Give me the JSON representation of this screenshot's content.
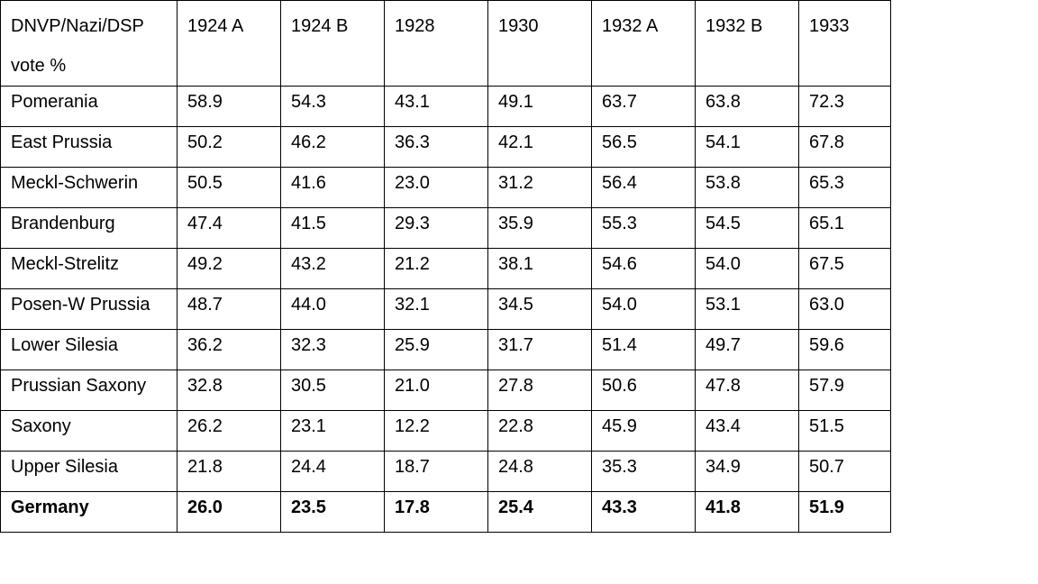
{
  "table": {
    "corner_line1": "DNVP/Nazi/DSP",
    "corner_line2": "vote %",
    "columns": [
      "1924 A",
      "1924 B",
      "1928",
      "1930",
      "1932 A",
      "1932 B",
      "1933"
    ],
    "rows": [
      {
        "region": "Pomerania",
        "values": [
          "58.9",
          "54.3",
          "43.1",
          "49.1",
          "63.7",
          "63.8",
          "72.3"
        ]
      },
      {
        "region": "East Prussia",
        "values": [
          "50.2",
          "46.2",
          "36.3",
          "42.1",
          "56.5",
          "54.1",
          "67.8"
        ]
      },
      {
        "region": "Meckl-Schwerin",
        "values": [
          "50.5",
          "41.6",
          "23.0",
          "31.2",
          "56.4",
          "53.8",
          "65.3"
        ]
      },
      {
        "region": "Brandenburg",
        "values": [
          "47.4",
          "41.5",
          "29.3",
          "35.9",
          "55.3",
          "54.5",
          "65.1"
        ]
      },
      {
        "region": "Meckl-Strelitz",
        "values": [
          "49.2",
          "43.2",
          "21.2",
          "38.1",
          "54.6",
          "54.0",
          "67.5"
        ]
      },
      {
        "region": "Posen-W Prussia",
        "values": [
          "48.7",
          "44.0",
          "32.1",
          "34.5",
          "54.0",
          "53.1",
          "63.0"
        ]
      },
      {
        "region": "Lower Silesia",
        "values": [
          "36.2",
          "32.3",
          "25.9",
          "31.7",
          "51.4",
          "49.7",
          "59.6"
        ]
      },
      {
        "region": "Prussian Saxony",
        "values": [
          "32.8",
          "30.5",
          "21.0",
          "27.8",
          "50.6",
          "47.8",
          "57.9"
        ]
      },
      {
        "region": "Saxony",
        "values": [
          "26.2",
          "23.1",
          "12.2",
          "22.8",
          "45.9",
          "43.4",
          "51.5"
        ]
      },
      {
        "region": "Upper Silesia",
        "values": [
          "21.8",
          "24.4",
          "18.7",
          "24.8",
          "35.3",
          "34.9",
          "50.7"
        ]
      }
    ],
    "total": {
      "region": "Germany",
      "values": [
        "26.0",
        "23.5",
        "17.8",
        "25.4",
        "43.3",
        "41.8",
        "51.9"
      ]
    }
  }
}
